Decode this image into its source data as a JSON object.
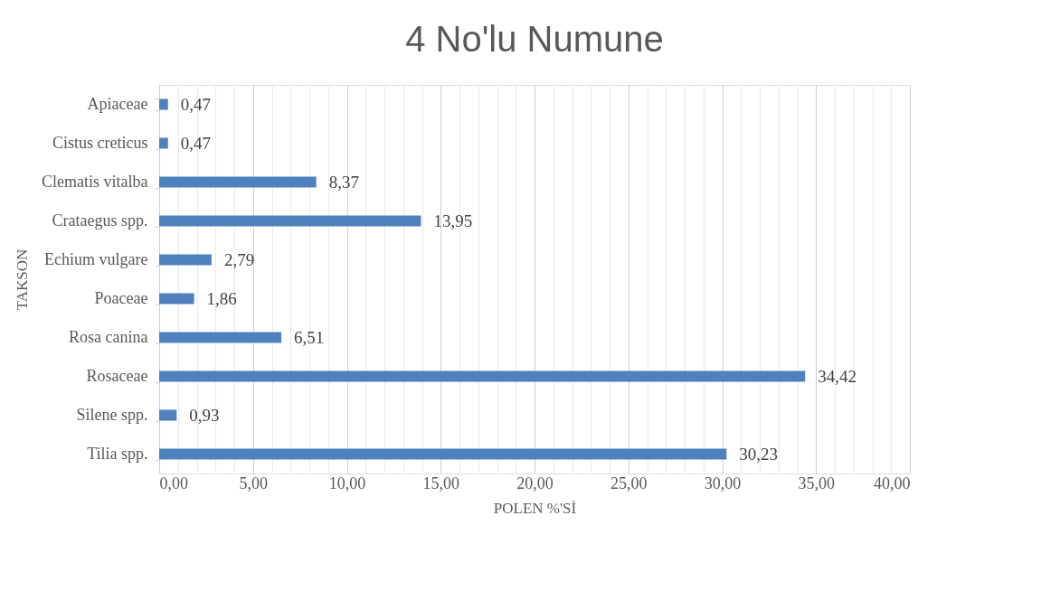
{
  "chart_data": {
    "type": "bar",
    "orientation": "horizontal",
    "title": "4 No'lu Numune",
    "xlabel": "POLEN %'Sİ",
    "ylabel": "TAKSON",
    "categories": [
      "Apiaceae",
      "Cistus creticus",
      "Clematis vitalba",
      "Crataegus spp.",
      "Echium vulgare",
      "Poaceae",
      "Rosa canina",
      "Rosaceae",
      "Silene spp.",
      "Tilia spp."
    ],
    "values": [
      0.47,
      0.47,
      8.37,
      13.95,
      2.79,
      1.86,
      6.51,
      34.42,
      0.93,
      30.23
    ],
    "value_labels": [
      "0,47",
      "0,47",
      "8,37",
      "13,95",
      "2,79",
      "1,86",
      "6,51",
      "34,42",
      "0,93",
      "30,23"
    ],
    "color": "#4f81bd",
    "xlim": [
      0,
      40
    ],
    "xticks": [
      {
        "value": 0,
        "label": "0,00"
      },
      {
        "value": 1,
        "label": null
      },
      {
        "value": 2,
        "label": null
      },
      {
        "value": 3,
        "label": null
      },
      {
        "value": 4,
        "label": null
      },
      {
        "value": 5,
        "label": "5,00"
      },
      {
        "value": 6,
        "label": null
      },
      {
        "value": 7,
        "label": null
      },
      {
        "value": 8,
        "label": null
      },
      {
        "value": 9,
        "label": null
      },
      {
        "value": 10,
        "label": "10,00"
      },
      {
        "value": 11,
        "label": null
      },
      {
        "value": 12,
        "label": null
      },
      {
        "value": 13,
        "label": null
      },
      {
        "value": 14,
        "label": null
      },
      {
        "value": 15,
        "label": "15,00"
      },
      {
        "value": 16,
        "label": null
      },
      {
        "value": 17,
        "label": null
      },
      {
        "value": 18,
        "label": null
      },
      {
        "value": 19,
        "label": null
      },
      {
        "value": 20,
        "label": "20,00"
      },
      {
        "value": 21,
        "label": null
      },
      {
        "value": 22,
        "label": null
      },
      {
        "value": 23,
        "label": null
      },
      {
        "value": 24,
        "label": null
      },
      {
        "value": 25,
        "label": "25,00"
      },
      {
        "value": 26,
        "label": null
      },
      {
        "value": 27,
        "label": null
      },
      {
        "value": 28,
        "label": null
      },
      {
        "value": 29,
        "label": null
      },
      {
        "value": 30,
        "label": "30,00"
      },
      {
        "value": 31,
        "label": null
      },
      {
        "value": 32,
        "label": null
      },
      {
        "value": 33,
        "label": null
      },
      {
        "value": 34,
        "label": null
      },
      {
        "value": 35,
        "label": "35,00"
      },
      {
        "value": 36,
        "label": null
      },
      {
        "value": 37,
        "label": null
      },
      {
        "value": 38,
        "label": null
      },
      {
        "value": 39,
        "label": null
      },
      {
        "value": 40,
        "label": "40,00"
      }
    ],
    "grid": "x",
    "legend": false
  }
}
